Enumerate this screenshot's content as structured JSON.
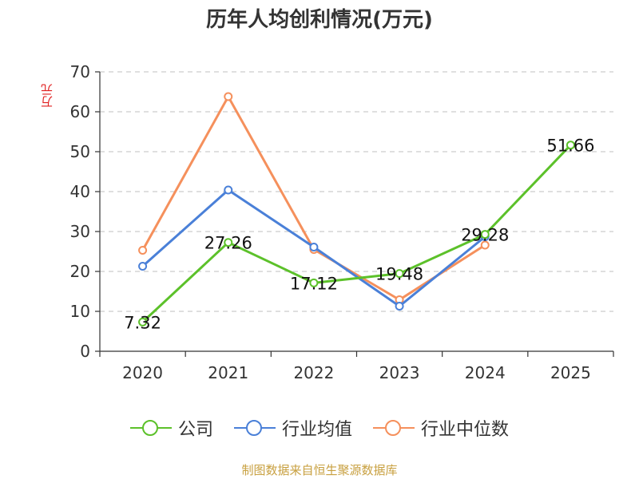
{
  "chart_data": {
    "type": "line",
    "title": "历年人均创利情况(万元)",
    "ylabel": "万元",
    "xlabel": "",
    "ylim": [
      0,
      70
    ],
    "yticks": [
      0,
      10,
      20,
      30,
      40,
      50,
      60,
      70
    ],
    "grid": true,
    "legend_position": "bottom",
    "categories": [
      "2020",
      "2021",
      "2022",
      "2023",
      "2024",
      "2025"
    ],
    "series": [
      {
        "name": "公司",
        "color": "#5cc12a",
        "values": [
          7.32,
          27.26,
          17.12,
          19.48,
          29.28,
          51.66
        ],
        "labels": [
          "7.32",
          "27.26",
          "17.12",
          "19.48",
          "29.28",
          "51.66"
        ]
      },
      {
        "name": "行业均值",
        "color": "#4a80d8",
        "values": [
          21.3,
          40.4,
          26.1,
          11.3,
          28.7,
          null
        ]
      },
      {
        "name": "行业中位数",
        "color": "#f5905c",
        "values": [
          25.3,
          63.8,
          25.5,
          12.9,
          26.6,
          null
        ]
      }
    ]
  },
  "footer": "制图数据来自恒生聚源数据库"
}
